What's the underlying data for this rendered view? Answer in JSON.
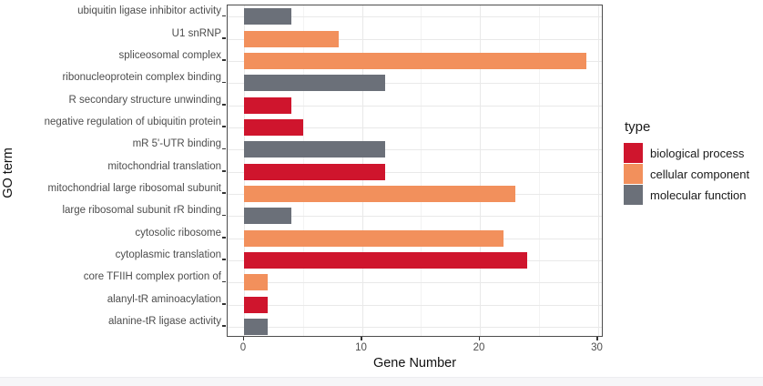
{
  "figure": {
    "x_axis_title": "Gene Number",
    "y_axis_title": "GO term",
    "legend": {
      "title": "type",
      "items": [
        {
          "label": "biological process",
          "color": "#CF152D"
        },
        {
          "label": "cellular component",
          "color": "#F2905C"
        },
        {
          "label": "molecular function",
          "color": "#6B7079"
        }
      ]
    }
  },
  "chart_data": {
    "type": "bar",
    "orientation": "horizontal",
    "title": "",
    "xlabel": "Gene Number",
    "ylabel": "GO term",
    "xlim": [
      0,
      30
    ],
    "x_ticks": [
      0,
      10,
      20,
      30
    ],
    "x_minor_ticks": [
      5,
      15,
      25
    ],
    "grid": true,
    "legend_title": "type",
    "legend_position": "right",
    "categories": [
      "ubiquitin ligase inhibitor activity",
      "U1 snRNP",
      "spliceosomal complex",
      "ribonucleoprotein complex binding",
      "R secondary structure unwinding",
      "negative regulation of ubiquitin protein",
      "mR 5'-UTR binding",
      "mitochondrial translation",
      "mitochondrial large ribosomal subunit",
      "large ribosomal subunit rR binding",
      "cytosolic ribosome",
      "cytoplasmic translation",
      "core TFIIH complex portion of",
      "alanyl-tR aminoacylation",
      "alanine-tR ligase activity"
    ],
    "values": [
      4,
      8,
      29,
      12,
      4,
      5,
      12,
      12,
      23,
      4,
      22,
      24,
      2,
      2,
      2
    ],
    "types": [
      "molecular function",
      "cellular component",
      "cellular component",
      "molecular function",
      "biological process",
      "biological process",
      "molecular function",
      "biological process",
      "cellular component",
      "molecular function",
      "cellular component",
      "biological process",
      "cellular component",
      "biological process",
      "molecular function"
    ],
    "type_colors": {
      "biological process": "#CF152D",
      "cellular component": "#F2905C",
      "molecular function": "#6B7079"
    },
    "colors": {
      "panel_border": "#4d4d4d",
      "grid_major": "#e9e9e9",
      "grid_minor": "#f3f3f3",
      "axis_text": "#4d4d4d",
      "title_text": "#111111"
    }
  }
}
